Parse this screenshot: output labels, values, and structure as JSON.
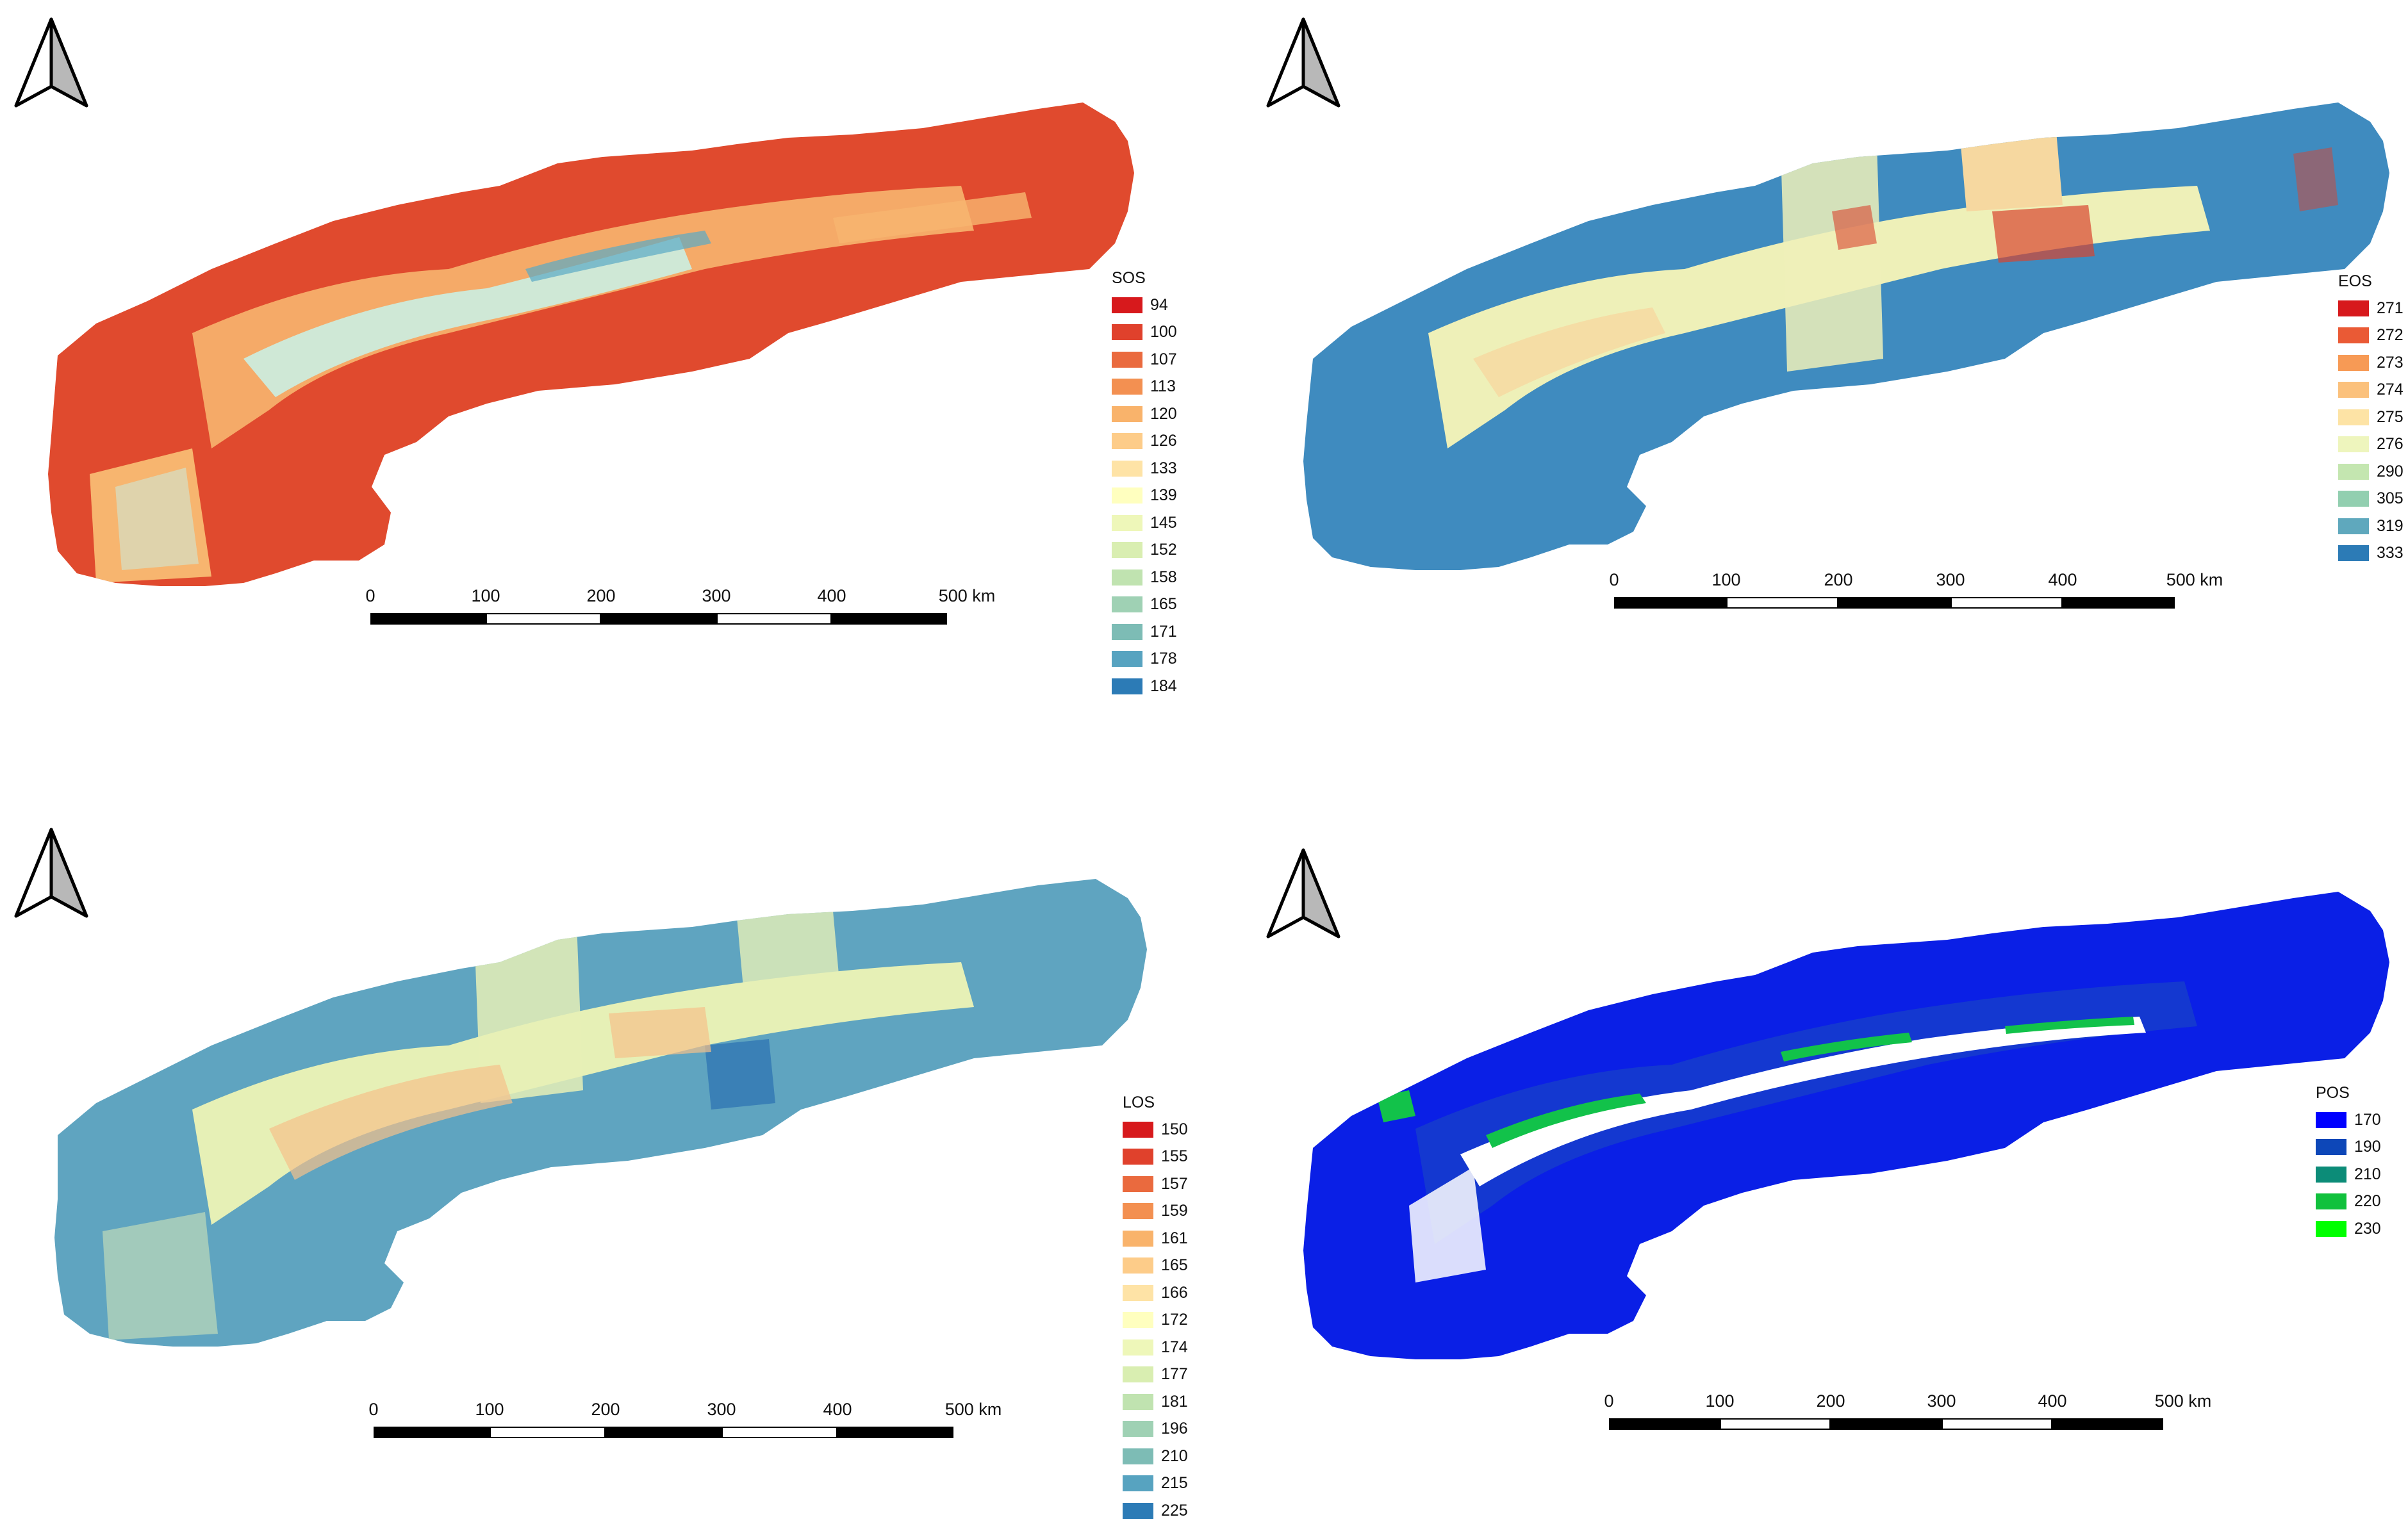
{
  "panels": [
    {
      "id": "sos",
      "legend": {
        "title": "SOS",
        "items": [
          {
            "label": "94",
            "color": "#d7191c"
          },
          {
            "label": "100",
            "color": "#e0412c"
          },
          {
            "label": "107",
            "color": "#ea6a3e"
          },
          {
            "label": "113",
            "color": "#f39051"
          },
          {
            "label": "120",
            "color": "#f9b36b"
          },
          {
            "label": "126",
            "color": "#fdcc89"
          },
          {
            "label": "133",
            "color": "#fee3a6"
          },
          {
            "label": "139",
            "color": "#ffffbf"
          },
          {
            "label": "145",
            "color": "#eef7b9"
          },
          {
            "label": "152",
            "color": "#d9eeb1"
          },
          {
            "label": "158",
            "color": "#c0e3b0"
          },
          {
            "label": "165",
            "color": "#9fd1b4"
          },
          {
            "label": "171",
            "color": "#7dbcb5"
          },
          {
            "label": "178",
            "color": "#57a3c0"
          },
          {
            "label": "184",
            "color": "#2c7bb6"
          }
        ]
      },
      "map_colors": {
        "base": "#e04a2e",
        "mid": "#f7b56f",
        "light": "#cfe8d6",
        "accent": "#5aa9c4"
      },
      "scalebar": {
        "labels": [
          "0",
          "100",
          "200",
          "300",
          "400",
          "500 km"
        ]
      }
    },
    {
      "id": "eos",
      "legend": {
        "title": "EOS",
        "items": [
          {
            "label": "271",
            "color": "#d7191c"
          },
          {
            "label": "272",
            "color": "#ea5a35"
          },
          {
            "label": "273",
            "color": "#f79a55"
          },
          {
            "label": "274",
            "color": "#fbc17c"
          },
          {
            "label": "275",
            "color": "#fde3a5"
          },
          {
            "label": "276",
            "color": "#eef5bd"
          },
          {
            "label": "290",
            "color": "#c4e6b0"
          },
          {
            "label": "305",
            "color": "#92cfb0"
          },
          {
            "label": "319",
            "color": "#5fa8bd"
          },
          {
            "label": "333",
            "color": "#2c7bb6"
          }
        ]
      },
      "map_colors": {
        "base": "#3f8bbf",
        "mid": "#eef0b8",
        "light": "#f6d8a0",
        "accent": "#d9442f"
      },
      "scalebar": {
        "labels": [
          "0",
          "100",
          "200",
          "300",
          "400",
          "500 km"
        ]
      }
    },
    {
      "id": "los",
      "legend": {
        "title": "LOS",
        "items": [
          {
            "label": "150",
            "color": "#d7191c"
          },
          {
            "label": "155",
            "color": "#e0412c"
          },
          {
            "label": "157",
            "color": "#ea6a3e"
          },
          {
            "label": "159",
            "color": "#f39051"
          },
          {
            "label": "161",
            "color": "#f9b36b"
          },
          {
            "label": "165",
            "color": "#fdcc89"
          },
          {
            "label": "166",
            "color": "#fee3a6"
          },
          {
            "label": "172",
            "color": "#ffffbf"
          },
          {
            "label": "174",
            "color": "#eef7b9"
          },
          {
            "label": "177",
            "color": "#d9eeb1"
          },
          {
            "label": "181",
            "color": "#c0e3b0"
          },
          {
            "label": "196",
            "color": "#9fd1b4"
          },
          {
            "label": "210",
            "color": "#7dbcb5"
          },
          {
            "label": "215",
            "color": "#57a3c0"
          },
          {
            "label": "225",
            "color": "#2c7bb6"
          }
        ]
      },
      "map_colors": {
        "base": "#5fa4c0",
        "mid": "#e6f0b6",
        "light": "#f5c08a",
        "accent": "#3a80b6"
      },
      "scalebar": {
        "labels": [
          "0",
          "100",
          "200",
          "300",
          "400",
          "500 km"
        ]
      }
    },
    {
      "id": "pos",
      "legend": {
        "title": "POS",
        "items": [
          {
            "label": "170",
            "color": "#0000ff"
          },
          {
            "label": "190",
            "color": "#0d47b8"
          },
          {
            "label": "210",
            "color": "#0c8c78"
          },
          {
            "label": "220",
            "color": "#10c13c"
          },
          {
            "label": "230",
            "color": "#00ff00"
          }
        ]
      },
      "map_colors": {
        "base": "#0a1fe6",
        "mid": "#1438d0",
        "light": "#ffffff",
        "accent": "#12c24a"
      },
      "scalebar": {
        "labels": [
          "0",
          "100",
          "200",
          "300",
          "400",
          "500 km"
        ]
      }
    }
  ]
}
